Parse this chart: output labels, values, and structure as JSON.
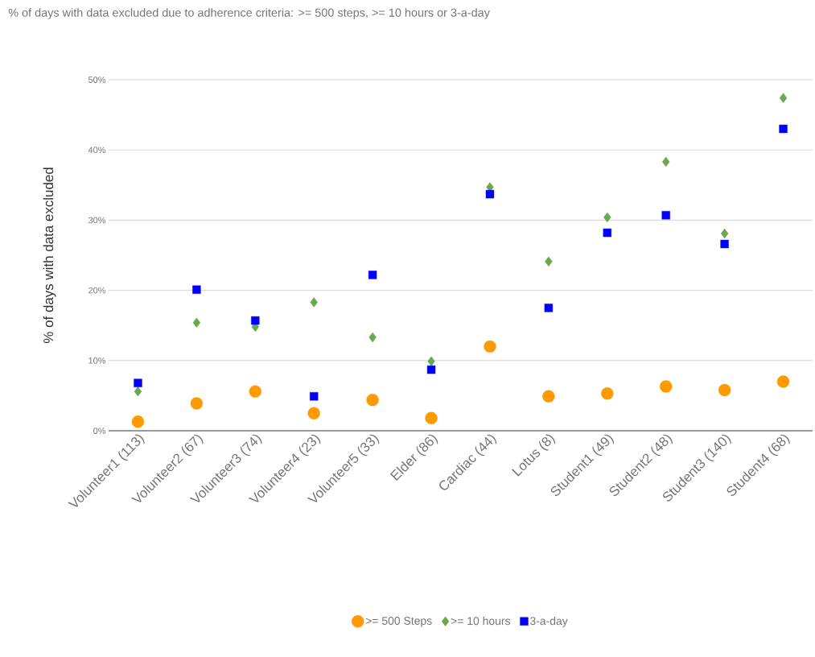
{
  "chart_data": {
    "type": "scatter",
    "title": "% of days with data excluded due to adherence criteria: >= 500 steps, >= 10 hours or 3-a-day",
    "ylabel": "% of days with data excluded",
    "categories": [
      "Volunteer1 (113)",
      "Volunteer2 (67)",
      "Volunteer3 (74)",
      "Volunteer4 (23)",
      "Volunteer5 (33)",
      "Elder (86)",
      "Cardiac (44)",
      "Lotus (8)",
      "Student1 (49)",
      "Student2 (48)",
      "Student3 (140)",
      "Student4 (68)"
    ],
    "series": [
      {
        "name": ">= 500 Steps",
        "color": "#ff9900",
        "marker": "circle",
        "values": [
          1.3,
          3.9,
          5.6,
          2.5,
          4.4,
          1.8,
          12.0,
          4.9,
          5.3,
          6.3,
          5.8,
          7.0
        ]
      },
      {
        "name": ">= 10 hours",
        "color": "#6aa84f",
        "marker": "diamond",
        "values": [
          5.6,
          15.4,
          14.8,
          18.3,
          13.3,
          9.9,
          34.7,
          24.1,
          30.4,
          38.3,
          28.1,
          47.4
        ]
      },
      {
        "name": "3-a-day",
        "color": "#0000ff",
        "marker": "square",
        "values": [
          6.8,
          20.1,
          15.7,
          4.9,
          22.2,
          8.7,
          33.7,
          17.5,
          28.2,
          30.7,
          26.6,
          43.0
        ]
      }
    ],
    "ylim": [
      0,
      50
    ],
    "yticks": [
      {
        "value": 0,
        "label": "0%"
      },
      {
        "value": 10,
        "label": "10%"
      },
      {
        "value": 20,
        "label": "20%"
      },
      {
        "value": 30,
        "label": "30%"
      },
      {
        "value": 40,
        "label": "40%"
      },
      {
        "value": 50,
        "label": "50%"
      }
    ],
    "grid": "y",
    "legend": "bottom"
  }
}
